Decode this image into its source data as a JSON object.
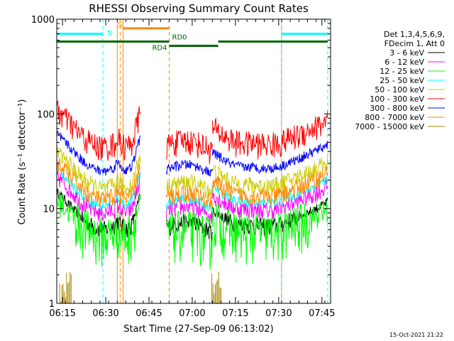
{
  "chart_data": {
    "type": "line",
    "title": "RHESSI Observing Summary Count Rates",
    "xlabel": "Start Time (27-Sep-09 06:13:02)",
    "ylabel": "Count Rate (s⁻¹ detector⁻¹)",
    "yscale": "log",
    "ylim": [
      1,
      1000
    ],
    "xlim_minutes": [
      0,
      95
    ],
    "x_ticks": [
      {
        "label": "06:15",
        "t": 2
      },
      {
        "label": "06:30",
        "t": 17
      },
      {
        "label": "06:45",
        "t": 32
      },
      {
        "label": "07:00",
        "t": 47
      },
      {
        "label": "07:15",
        "t": 62
      },
      {
        "label": "07:30",
        "t": 77
      },
      {
        "label": "07:45",
        "t": 92
      }
    ],
    "y_ticks": [
      {
        "label": "1",
        "value": 1
      },
      {
        "label": "10",
        "value": 10
      },
      {
        "label": "100",
        "value": 100
      },
      {
        "label": "1000",
        "value": 1000
      }
    ],
    "legend": {
      "position": "right",
      "header": [
        "Det 1,3,4,5,6,9,",
        "FDecim 1, Att 0"
      ]
    },
    "series": [
      {
        "name": "3 - 6 keV",
        "color": "#000000",
        "k": 0.21
      },
      {
        "name": "6 - 12 keV",
        "color": "#ff00ff",
        "k": 0.31
      },
      {
        "name": "12 - 25 keV",
        "color": "#00ff00",
        "k": 0.18
      },
      {
        "name": "25 - 50 keV",
        "color": "#00ffff",
        "k": 0.37
      },
      {
        "name": "50 - 100 keV",
        "color": "#cccc00",
        "k": 0.56
      },
      {
        "name": "100 - 300 keV",
        "color": "#ff0000",
        "k": 1.55
      },
      {
        "name": "300 - 800 keV",
        "color": "#0000ff",
        "k": 0.86
      },
      {
        "name": "800 - 7000 keV",
        "color": "#ff8800",
        "k": 0.43
      },
      {
        "name": "7000 - 15000 keV",
        "color": "#aa8800",
        "k": 0.0
      }
    ],
    "segments": [
      {
        "t_start": 0,
        "t_end": 29,
        "base": [
          [
            0,
            71
          ],
          [
            3,
            58
          ],
          [
            6,
            46
          ],
          [
            9,
            37
          ],
          [
            12,
            32
          ],
          [
            15,
            29
          ],
          [
            17,
            29
          ],
          [
            20,
            32
          ],
          [
            21,
            36
          ],
          [
            22,
            33
          ],
          [
            24,
            29
          ],
          [
            26,
            32
          ],
          [
            27,
            40
          ],
          [
            28,
            52
          ],
          [
            29,
            66
          ]
        ]
      },
      {
        "t_start": 38,
        "t_end": 54,
        "base": [
          [
            38,
            30
          ],
          [
            40,
            32
          ],
          [
            42,
            33
          ],
          [
            44,
            34
          ],
          [
            46,
            34
          ],
          [
            48,
            33
          ],
          [
            50,
            31
          ],
          [
            52,
            29
          ],
          [
            54,
            27
          ]
        ]
      },
      {
        "t_start": 54,
        "t_end": 94,
        "base": [
          [
            54,
            46
          ],
          [
            56,
            42
          ],
          [
            58,
            38
          ],
          [
            60,
            35
          ],
          [
            62,
            33
          ],
          [
            65,
            32
          ],
          [
            68,
            32
          ],
          [
            71,
            31
          ],
          [
            74,
            31
          ],
          [
            77,
            32
          ],
          [
            80,
            35
          ],
          [
            83,
            38
          ],
          [
            86,
            42
          ],
          [
            89,
            46
          ],
          [
            92,
            51
          ],
          [
            94,
            56
          ]
        ]
      }
    ],
    "annotations": {
      "saa_bar": {
        "color": "#00ffff",
        "level": 700,
        "intervals": [
          [
            0,
            16
          ],
          [
            78,
            94
          ]
        ]
      },
      "saa_marker_label": "N",
      "night_bar": {
        "color": "#006600",
        "level": 580,
        "intervals": [
          [
            0,
            39
          ],
          [
            39,
            56
          ],
          [
            56,
            94
          ]
        ]
      },
      "night_labels": [
        "RD4",
        "RD0"
      ],
      "flare_bar": {
        "color": "#ff8800",
        "level": 800,
        "interval": [
          23,
          39
        ]
      },
      "flare_label": "S",
      "cyan_lines": [
        {
          "t": 0,
          "style": "solid"
        },
        {
          "t": 16,
          "style": "dashed"
        },
        {
          "t": 78,
          "style": "solid"
        },
        {
          "t": 94,
          "style": "dashed"
        }
      ],
      "orange_lines": [
        {
          "t": 21,
          "style": "solid"
        },
        {
          "t": 22,
          "style": "dashed"
        },
        {
          "t": 23,
          "style": "solid"
        },
        {
          "t": 39,
          "style": "dashed"
        },
        {
          "t": 78,
          "style": "dashed"
        }
      ]
    }
  },
  "footer": {
    "timestamp": "15-Oct-2021 21:22"
  }
}
